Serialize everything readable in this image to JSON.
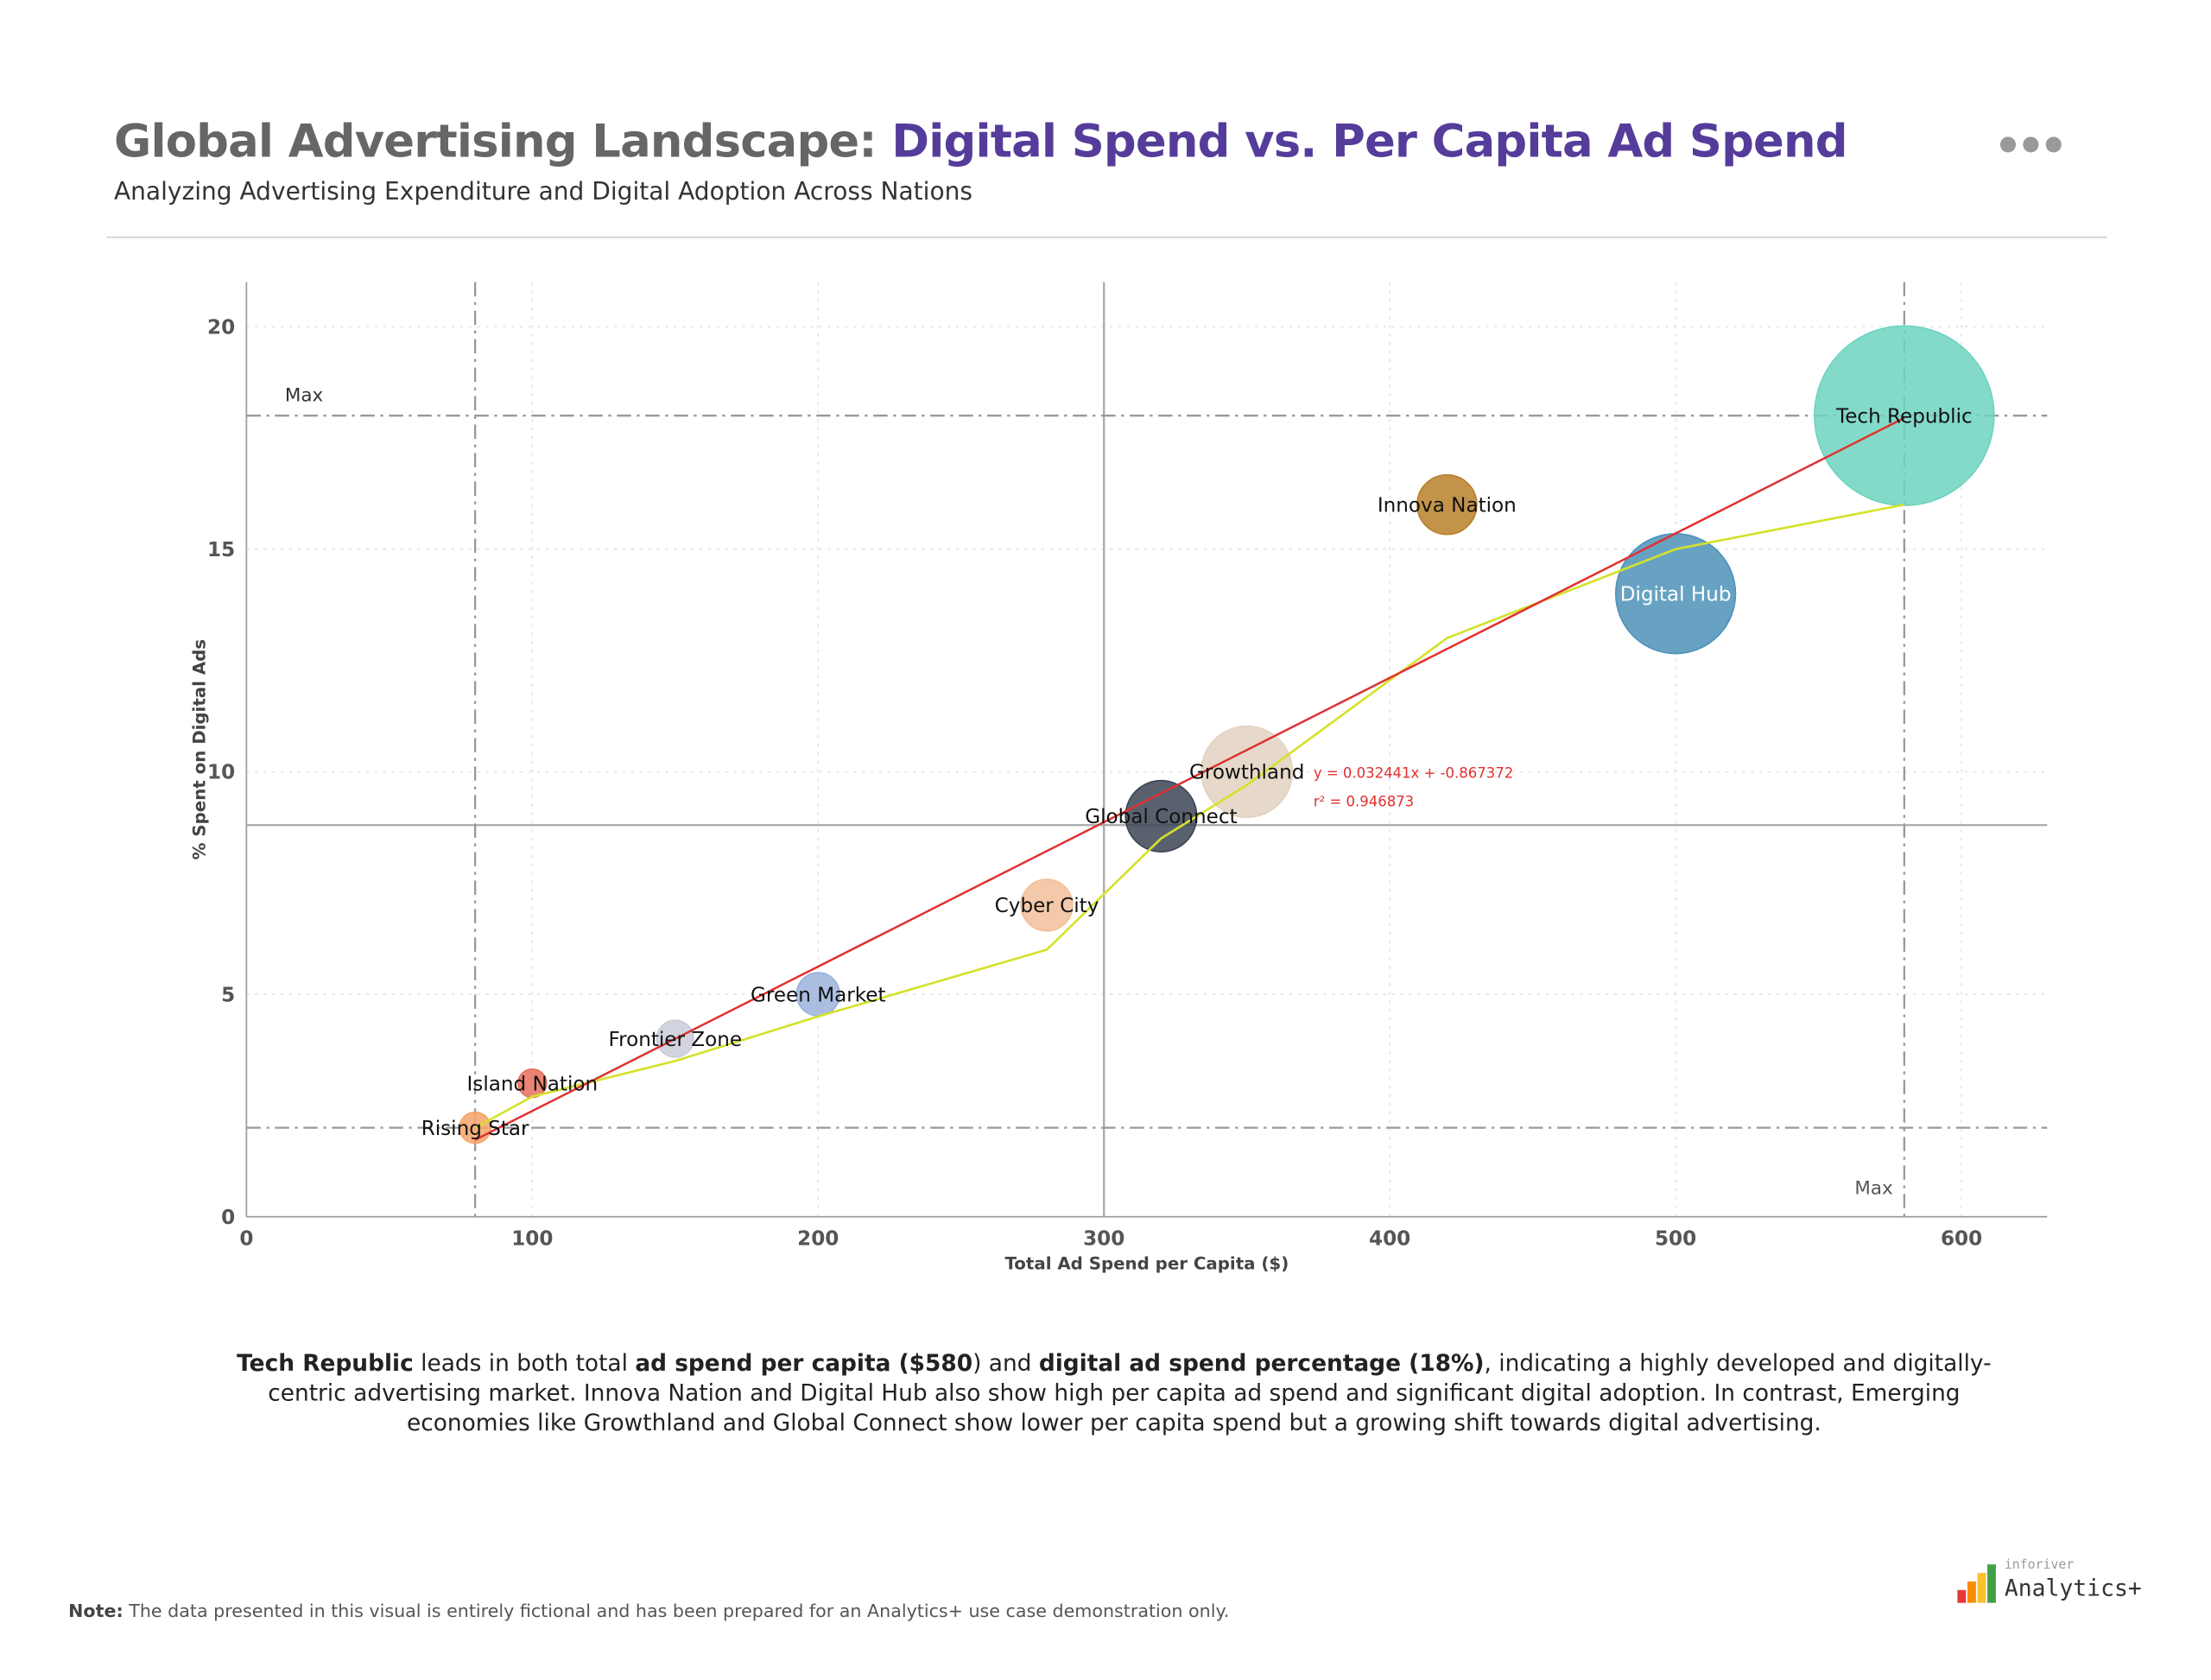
{
  "header": {
    "title_part1": "Global Advertising Landscape: ",
    "title_part2": "Digital Spend vs. Per Capita Ad Spend",
    "subtitle": "Analyzing Advertising Expenditure and Digital Adoption Across Nations"
  },
  "chart_data": {
    "type": "bubble",
    "x_label": "Total Ad Spend per Capita ($)",
    "y_label": "% Spent on Digital Ads",
    "categories": [
      "Rising Star",
      "Island Nation",
      "Frontier Zone",
      "Green Market",
      "Cyber City",
      "Global Connect",
      "Growthland",
      "Innova Nation",
      "Digital Hub",
      "Tech Republic"
    ],
    "x": [
      80,
      100,
      150,
      200,
      280,
      320,
      350,
      420,
      500,
      580
    ],
    "y": [
      2,
      3,
      4,
      5,
      7,
      9,
      10,
      16,
      14,
      18
    ],
    "sizes": [
      12,
      10,
      17,
      23,
      33,
      63,
      103,
      44,
      178,
      400
    ],
    "colors": [
      "#f4a46a",
      "#e8705a",
      "#c9cdd8",
      "#9bb3dc",
      "#f2c09a",
      "#3d4555",
      "#e3d2c0",
      "#b8802a",
      "#4e92b8",
      "#6dd3c0"
    ],
    "label_colors": [
      "#111",
      "#111",
      "#111",
      "#111",
      "#111",
      "#111",
      "#111",
      "#111",
      "#ffffff",
      "#111"
    ],
    "xlim": [
      0,
      630
    ],
    "ylim": [
      0,
      21
    ],
    "xticks": [
      0,
      100,
      200,
      300,
      400,
      500,
      600
    ],
    "yticks": [
      0,
      5,
      10,
      15,
      20
    ],
    "grid": true,
    "reference_lines": [
      {
        "axis": "x",
        "value": 300,
        "style": "solid"
      },
      {
        "axis": "y",
        "value": 8.8,
        "style": "solid"
      },
      {
        "axis": "x",
        "value": 80,
        "style": "dashed"
      },
      {
        "axis": "x",
        "value": 580,
        "style": "dashed",
        "label": "Max"
      },
      {
        "axis": "y",
        "value": 2,
        "style": "dashed"
      },
      {
        "axis": "y",
        "value": 18,
        "style": "dashed",
        "label": "Max"
      }
    ],
    "trendline": {
      "slope": 0.032441,
      "intercept": -0.867372,
      "x_range": [
        80,
        580
      ],
      "color": "#e03030",
      "equation": "y = 0.032441x + -0.867372",
      "r2": "r² = 0.946873"
    },
    "smooth_line": {
      "color": "#d4e22a",
      "x": [
        80,
        100,
        150,
        200,
        280,
        320,
        350,
        420,
        500,
        580
      ],
      "y": [
        2,
        2.7,
        3.5,
        4.5,
        6,
        8.5,
        9.7,
        13,
        15,
        16
      ]
    }
  },
  "commentary": [
    {
      "text": "Tech Republic",
      "bold": true
    },
    {
      "text": " leads in both total ",
      "bold": false
    },
    {
      "text": "ad spend per capita ($580",
      "bold": true
    },
    {
      "text": ") and ",
      "bold": false
    },
    {
      "text": "digital ad spend percentage (18%)",
      "bold": true
    },
    {
      "text": ", indicating a highly developed and digitally-centric advertising market. Innova Nation and Digital Hub also show high per capita ad spend and significant digital adoption. In contrast, Emerging economies like Growthland and Global Connect show lower per capita spend but a growing shift towards digital advertising.",
      "bold": false
    }
  ],
  "note": {
    "label": "Note:",
    "text": " The data presented in this visual is entirely fictional and has been prepared for an Analytics+ use case demonstration only."
  },
  "logo": {
    "small": "inforiver",
    "big": "Analytics+"
  }
}
